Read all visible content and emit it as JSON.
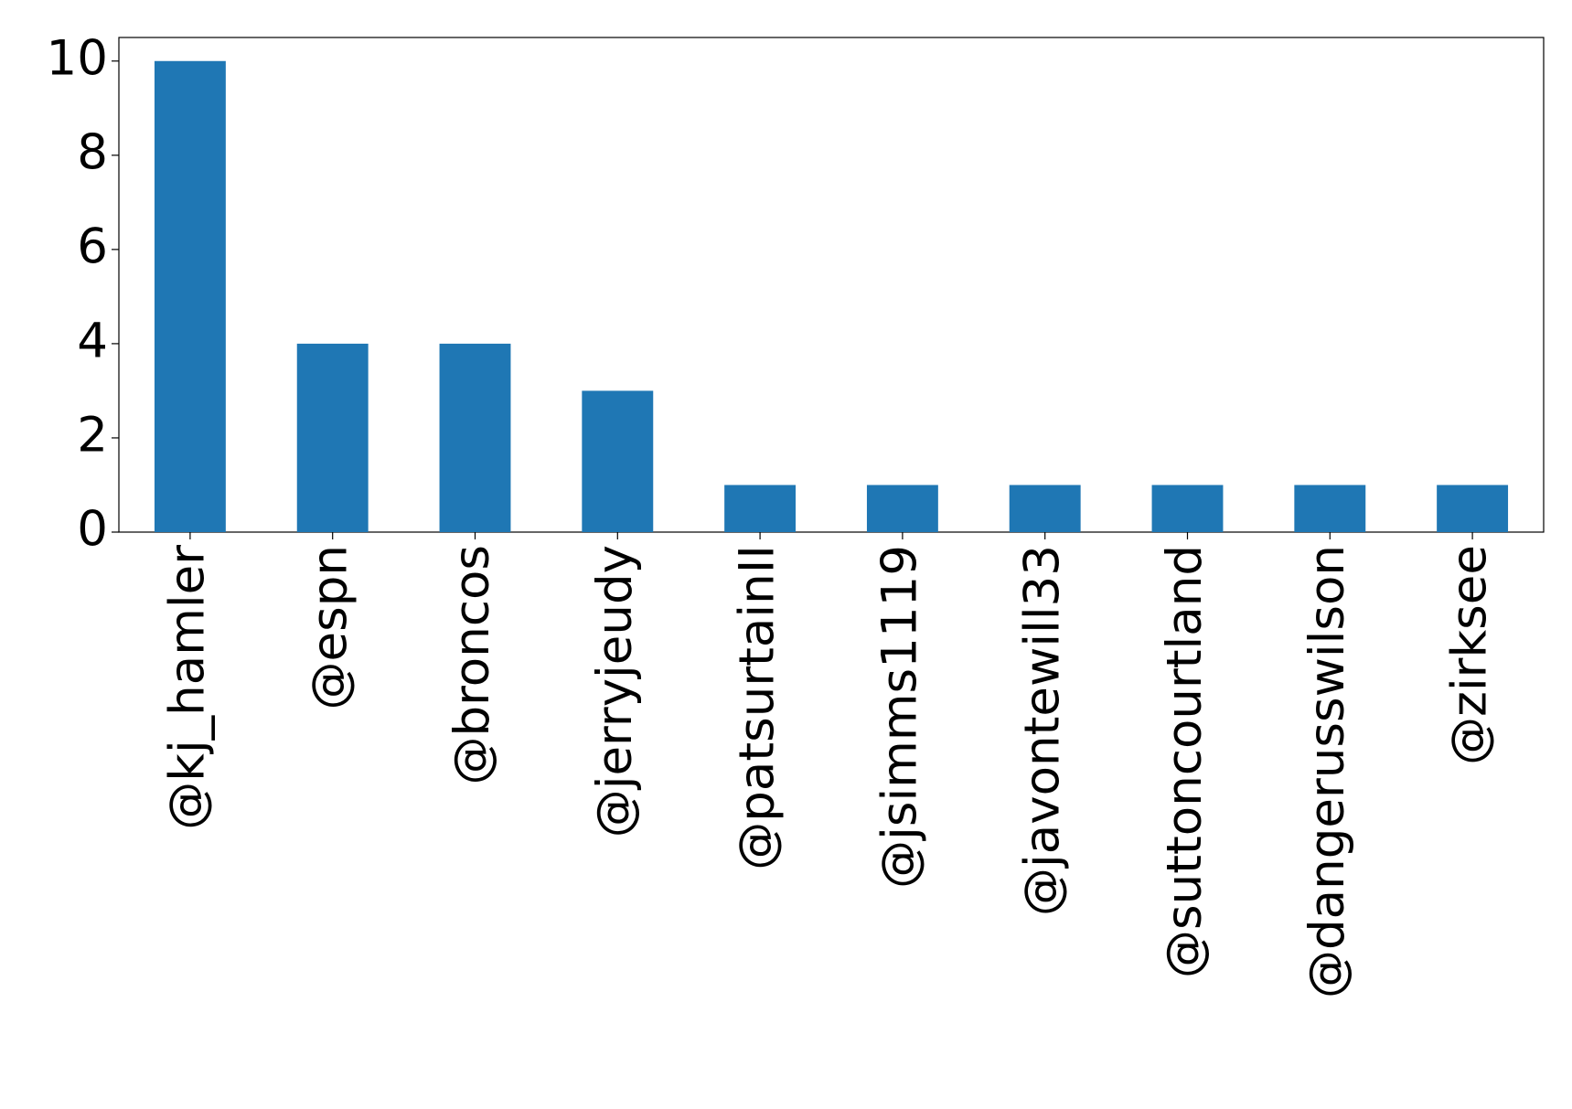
{
  "chart_data": {
    "type": "bar",
    "categories": [
      "@kj_hamler",
      "@espn",
      "@broncos",
      "@jerryjeudy",
      "@patsurtainII",
      "@jsimms1119",
      "@javontewill33",
      "@suttoncourtland",
      "@dangerusswilson",
      "@zirksee"
    ],
    "values": [
      10,
      4,
      4,
      3,
      1,
      1,
      1,
      1,
      1,
      1
    ],
    "color": "#1f77b4",
    "ylim": [
      0,
      10.5
    ],
    "yticks": [
      0,
      2,
      4,
      6,
      8,
      10
    ],
    "grid": false
  }
}
